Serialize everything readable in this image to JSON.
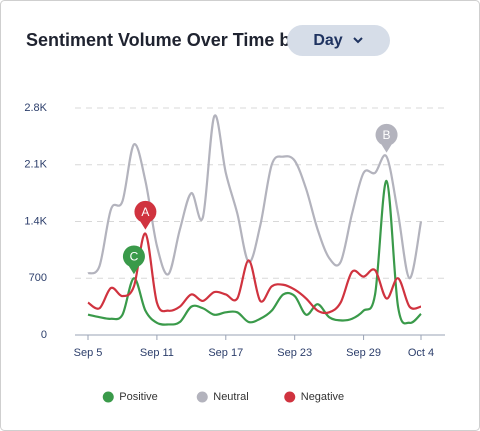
{
  "chart_data": {
    "type": "line",
    "title": "Sentiment Volume Over Time by",
    "selector": "Day",
    "categories": [
      "Sep 5",
      null,
      null,
      null,
      null,
      null,
      "Sep 11",
      null,
      null,
      null,
      null,
      null,
      "Sep 17",
      null,
      null,
      null,
      null,
      null,
      "Sep 23",
      null,
      null,
      null,
      null,
      null,
      "Sep 29",
      null,
      null,
      null,
      null,
      "Oct 4"
    ],
    "series": [
      {
        "name": "Positive",
        "color": "#3a9a4a",
        "values": [
          250,
          220,
          200,
          250,
          700,
          300,
          150,
          130,
          160,
          350,
          330,
          250,
          280,
          280,
          160,
          200,
          300,
          500,
          480,
          250,
          380,
          220,
          180,
          200,
          300,
          500,
          1900,
          350,
          150,
          260
        ]
      },
      {
        "name": "Neutral",
        "color": "#b3b3bd",
        "values": [
          760,
          850,
          1550,
          1650,
          2350,
          1900,
          1100,
          750,
          1300,
          1750,
          1450,
          2700,
          2000,
          1500,
          900,
          1350,
          2100,
          2200,
          2150,
          1800,
          1300,
          950,
          900,
          1500,
          2000,
          2000,
          2200,
          1500,
          700,
          1400
        ]
      },
      {
        "name": "Negative",
        "color": "#d0333f",
        "values": [
          400,
          330,
          580,
          480,
          600,
          1250,
          400,
          300,
          350,
          500,
          420,
          530,
          500,
          450,
          920,
          420,
          600,
          620,
          560,
          450,
          300,
          280,
          400,
          780,
          720,
          800,
          450,
          700,
          350,
          350
        ]
      }
    ],
    "annotations": [
      {
        "text": "A",
        "series": 2,
        "point": 5
      },
      {
        "text": "B",
        "series": 1,
        "point": 26
      },
      {
        "text": "C",
        "series": 0,
        "point": 4
      }
    ],
    "ylim": [
      0,
      2800
    ],
    "yticks": [
      0,
      700,
      {
        "value": 1400,
        "label": "1.4K"
      },
      {
        "value": 2100,
        "label": "2.1K"
      },
      {
        "value": 2800,
        "label": "2.8K"
      }
    ],
    "grid": true,
    "legend": "bottom"
  }
}
